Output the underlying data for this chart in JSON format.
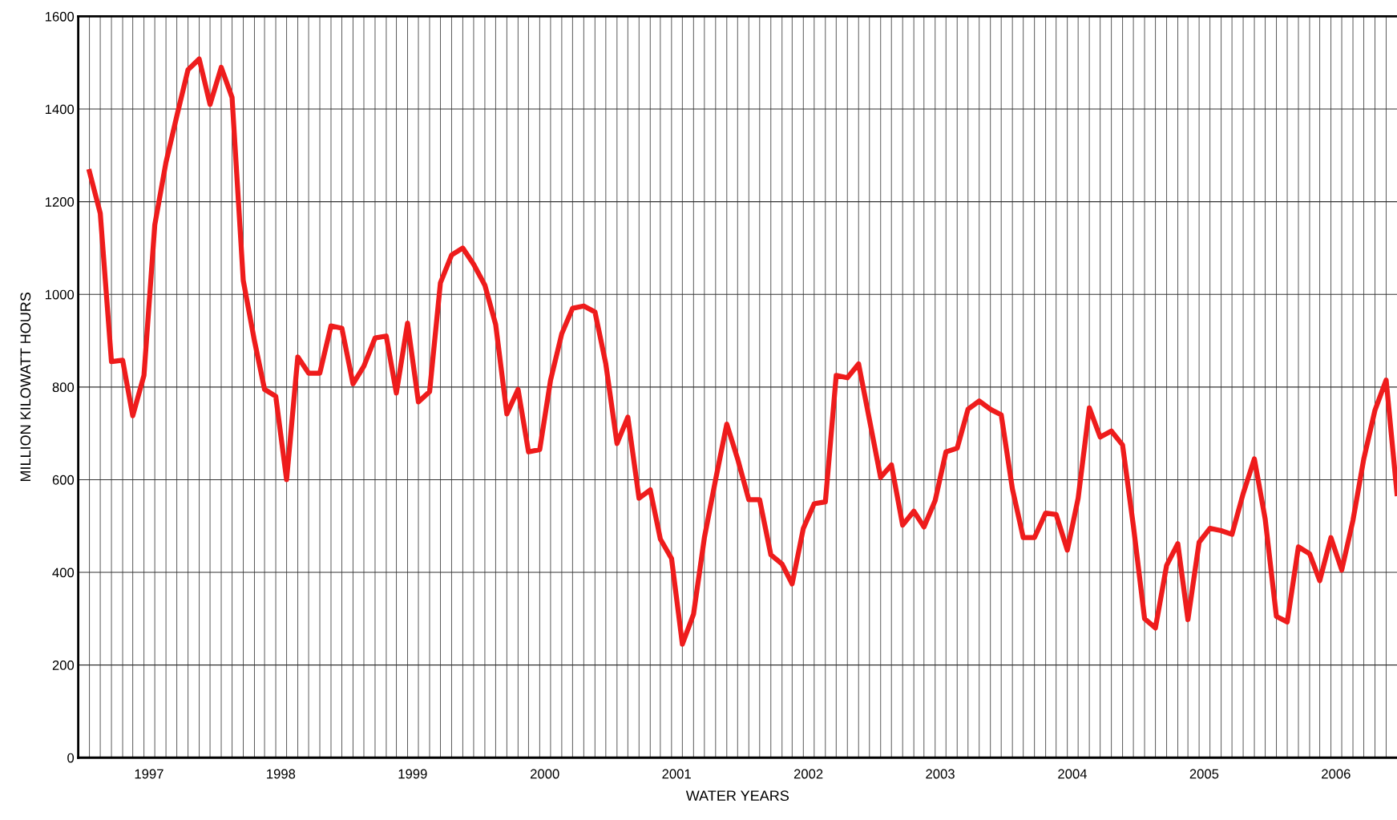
{
  "chart_data": {
    "type": "line",
    "xlabel": "WATER YEARS",
    "ylabel": "MILLION KILOWATT HOURS",
    "x": [
      "1996-11",
      "1996-12",
      "1997-01",
      "1997-02",
      "1997-03",
      "1997-04",
      "1997-05",
      "1997-06",
      "1997-07",
      "1997-08",
      "1997-09",
      "1997-10",
      "1997-11",
      "1997-12",
      "1998-01",
      "1998-02",
      "1998-03",
      "1998-04",
      "1998-05",
      "1998-06",
      "1998-07",
      "1998-08",
      "1998-09",
      "1998-10",
      "1998-11",
      "1998-12",
      "1999-01",
      "1999-02",
      "1999-03",
      "1999-04",
      "1999-05",
      "1999-06",
      "1999-07",
      "1999-08",
      "1999-09",
      "1999-10",
      "1999-11",
      "1999-12",
      "2000-01",
      "2000-02",
      "2000-03",
      "2000-04",
      "2000-05",
      "2000-06",
      "2000-07",
      "2000-08",
      "2000-09",
      "2000-10",
      "2000-11",
      "2000-12",
      "2001-01",
      "2001-02",
      "2001-03",
      "2001-04",
      "2001-05",
      "2001-06",
      "2001-07",
      "2001-08",
      "2001-09",
      "2001-10",
      "2001-11",
      "2001-12",
      "2002-01",
      "2002-02",
      "2002-03",
      "2002-04",
      "2002-05",
      "2002-06",
      "2002-07",
      "2002-08",
      "2002-09",
      "2002-10",
      "2002-11",
      "2002-12",
      "2003-01",
      "2003-02",
      "2003-03",
      "2003-04",
      "2003-05",
      "2003-06",
      "2003-07",
      "2003-08",
      "2003-09",
      "2003-10",
      "2003-11",
      "2003-12",
      "2004-01",
      "2004-02",
      "2004-03",
      "2004-04",
      "2004-05",
      "2004-06",
      "2004-07",
      "2004-08",
      "2004-09",
      "2004-10",
      "2004-11",
      "2004-12",
      "2005-01",
      "2005-02",
      "2005-03",
      "2005-04",
      "2005-05",
      "2005-06",
      "2005-07",
      "2005-08",
      "2005-09",
      "2005-10",
      "2005-11",
      "2005-12",
      "2006-01",
      "2006-02",
      "2006-03",
      "2006-04",
      "2006-05",
      "2006-06",
      "2006-07",
      "2006-08",
      "2006-09",
      "2006-10"
    ],
    "series": [
      {
        "color": "#ee1c1c",
        "values": [
          1265,
          1175,
          855,
          858,
          738,
          825,
          1150,
          1285,
          1385,
          1485,
          1508,
          1410,
          1490,
          1425,
          1030,
          900,
          795,
          780,
          600,
          865,
          830,
          830,
          932,
          927,
          807,
          845,
          906,
          910,
          787,
          938,
          768,
          790,
          1025,
          1085,
          1100,
          1065,
          1020,
          935,
          742,
          795,
          660,
          665,
          815,
          915,
          970,
          975,
          962,
          850,
          678,
          735,
          560,
          578,
          472,
          430,
          245,
          310,
          475,
          600,
          720,
          645,
          557,
          557,
          438,
          418,
          375,
          495,
          548,
          552,
          825,
          820,
          850,
          730,
          605,
          632,
          502,
          532,
          498,
          555,
          660,
          668,
          752,
          770,
          752,
          740,
          580,
          475,
          475,
          528,
          525,
          448,
          560,
          755,
          692,
          705,
          675,
          500,
          300,
          280,
          415,
          462,
          298,
          465,
          495,
          490,
          482,
          570,
          645,
          515,
          305,
          293,
          455,
          440,
          382,
          475,
          405,
          512,
          645,
          750,
          815,
          570
        ]
      }
    ],
    "xlim": [
      "1996-10",
      "2006-10"
    ],
    "ylim": [
      0,
      1600
    ],
    "yticks": [
      0,
      200,
      400,
      600,
      800,
      1000,
      1200,
      1400,
      1600
    ],
    "xticks": [
      {
        "value": "1997-04-15",
        "label": "1997"
      },
      {
        "value": "1998-04-15",
        "label": "1998"
      },
      {
        "value": "1999-04-15",
        "label": "1999"
      },
      {
        "value": "2000-04-15",
        "label": "2000"
      },
      {
        "value": "2001-04-15",
        "label": "2001"
      },
      {
        "value": "2002-04-15",
        "label": "2002"
      },
      {
        "value": "2003-04-15",
        "label": "2003"
      },
      {
        "value": "2004-04-15",
        "label": "2004"
      },
      {
        "value": "2005-04-15",
        "label": "2005"
      },
      {
        "value": "2006-04-15",
        "label": "2006"
      }
    ],
    "grid": true,
    "marker": "none",
    "line_style": "solid"
  }
}
